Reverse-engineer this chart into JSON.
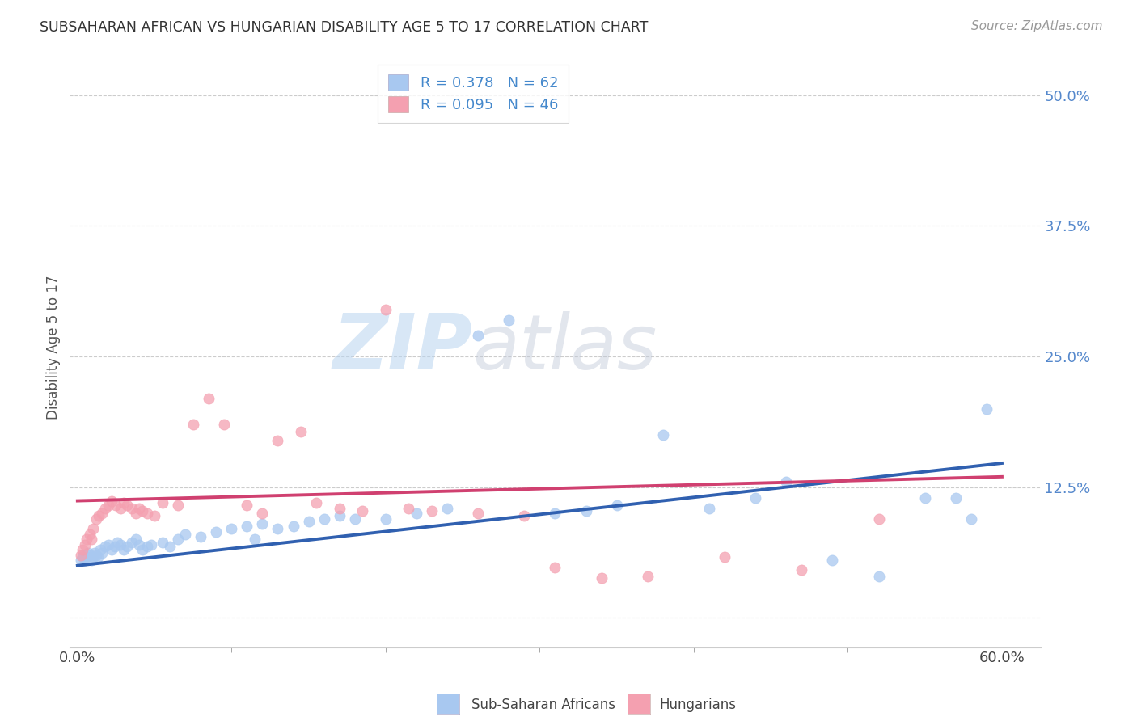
{
  "title": "SUBSAHARAN AFRICAN VS HUNGARIAN DISABILITY AGE 5 TO 17 CORRELATION CHART",
  "source": "Source: ZipAtlas.com",
  "ylabel": "Disability Age 5 to 17",
  "r1": 0.378,
  "n1": 62,
  "r2": 0.095,
  "n2": 46,
  "color_blue": "#a8c8f0",
  "color_pink": "#f4a0b0",
  "line_color_blue": "#3060b0",
  "line_color_pink": "#d04070",
  "legend_label1": "Sub-Saharan Africans",
  "legend_label2": "Hungarians",
  "watermark_zip": "ZIP",
  "watermark_atlas": "atlas",
  "background_color": "#ffffff",
  "grid_color": "#cccccc",
  "blue_x": [
    0.002,
    0.003,
    0.004,
    0.005,
    0.006,
    0.007,
    0.008,
    0.009,
    0.01,
    0.011,
    0.012,
    0.013,
    0.015,
    0.016,
    0.018,
    0.02,
    0.022,
    0.024,
    0.026,
    0.028,
    0.03,
    0.032,
    0.035,
    0.038,
    0.04,
    0.042,
    0.045,
    0.048,
    0.055,
    0.06,
    0.065,
    0.07,
    0.08,
    0.09,
    0.1,
    0.11,
    0.115,
    0.12,
    0.13,
    0.14,
    0.15,
    0.16,
    0.17,
    0.18,
    0.2,
    0.22,
    0.24,
    0.26,
    0.28,
    0.31,
    0.33,
    0.35,
    0.38,
    0.41,
    0.44,
    0.46,
    0.49,
    0.52,
    0.55,
    0.57,
    0.58,
    0.59
  ],
  "blue_y": [
    0.055,
    0.058,
    0.06,
    0.055,
    0.058,
    0.062,
    0.06,
    0.055,
    0.058,
    0.062,
    0.06,
    0.058,
    0.065,
    0.062,
    0.068,
    0.07,
    0.065,
    0.068,
    0.072,
    0.07,
    0.065,
    0.068,
    0.072,
    0.075,
    0.07,
    0.065,
    0.068,
    0.07,
    0.072,
    0.068,
    0.075,
    0.08,
    0.078,
    0.082,
    0.085,
    0.088,
    0.075,
    0.09,
    0.085,
    0.088,
    0.092,
    0.095,
    0.098,
    0.095,
    0.095,
    0.1,
    0.105,
    0.27,
    0.285,
    0.1,
    0.102,
    0.108,
    0.175,
    0.105,
    0.115,
    0.13,
    0.055,
    0.04,
    0.115,
    0.115,
    0.095,
    0.2
  ],
  "pink_x": [
    0.002,
    0.003,
    0.005,
    0.006,
    0.008,
    0.009,
    0.01,
    0.012,
    0.014,
    0.016,
    0.018,
    0.02,
    0.022,
    0.025,
    0.028,
    0.03,
    0.032,
    0.035,
    0.038,
    0.04,
    0.042,
    0.045,
    0.05,
    0.055,
    0.065,
    0.075,
    0.085,
    0.095,
    0.11,
    0.12,
    0.13,
    0.145,
    0.155,
    0.17,
    0.185,
    0.2,
    0.215,
    0.23,
    0.26,
    0.29,
    0.31,
    0.34,
    0.37,
    0.42,
    0.47,
    0.52
  ],
  "pink_y": [
    0.06,
    0.065,
    0.07,
    0.075,
    0.08,
    0.075,
    0.085,
    0.095,
    0.098,
    0.1,
    0.105,
    0.108,
    0.112,
    0.108,
    0.105,
    0.11,
    0.108,
    0.105,
    0.1,
    0.105,
    0.102,
    0.1,
    0.098,
    0.11,
    0.108,
    0.185,
    0.21,
    0.185,
    0.108,
    0.1,
    0.17,
    0.178,
    0.11,
    0.105,
    0.102,
    0.295,
    0.105,
    0.102,
    0.1,
    0.098,
    0.048,
    0.038,
    0.04,
    0.058,
    0.046,
    0.095
  ],
  "line_blue_x0": 0.0,
  "line_blue_y0": 0.05,
  "line_blue_x1": 0.6,
  "line_blue_y1": 0.148,
  "line_pink_x0": 0.0,
  "line_pink_y0": 0.112,
  "line_pink_x1": 0.6,
  "line_pink_y1": 0.135,
  "xlim": [
    -0.005,
    0.625
  ],
  "ylim": [
    -0.028,
    0.545
  ],
  "ytick_positions": [
    0.0,
    0.125,
    0.25,
    0.375,
    0.5
  ],
  "ytick_labels": [
    "",
    "12.5%",
    "25.0%",
    "37.5%",
    "50.0%"
  ],
  "xtick_positions": [
    0.0,
    0.6
  ],
  "xtick_labels": [
    "0.0%",
    "60.0%"
  ]
}
